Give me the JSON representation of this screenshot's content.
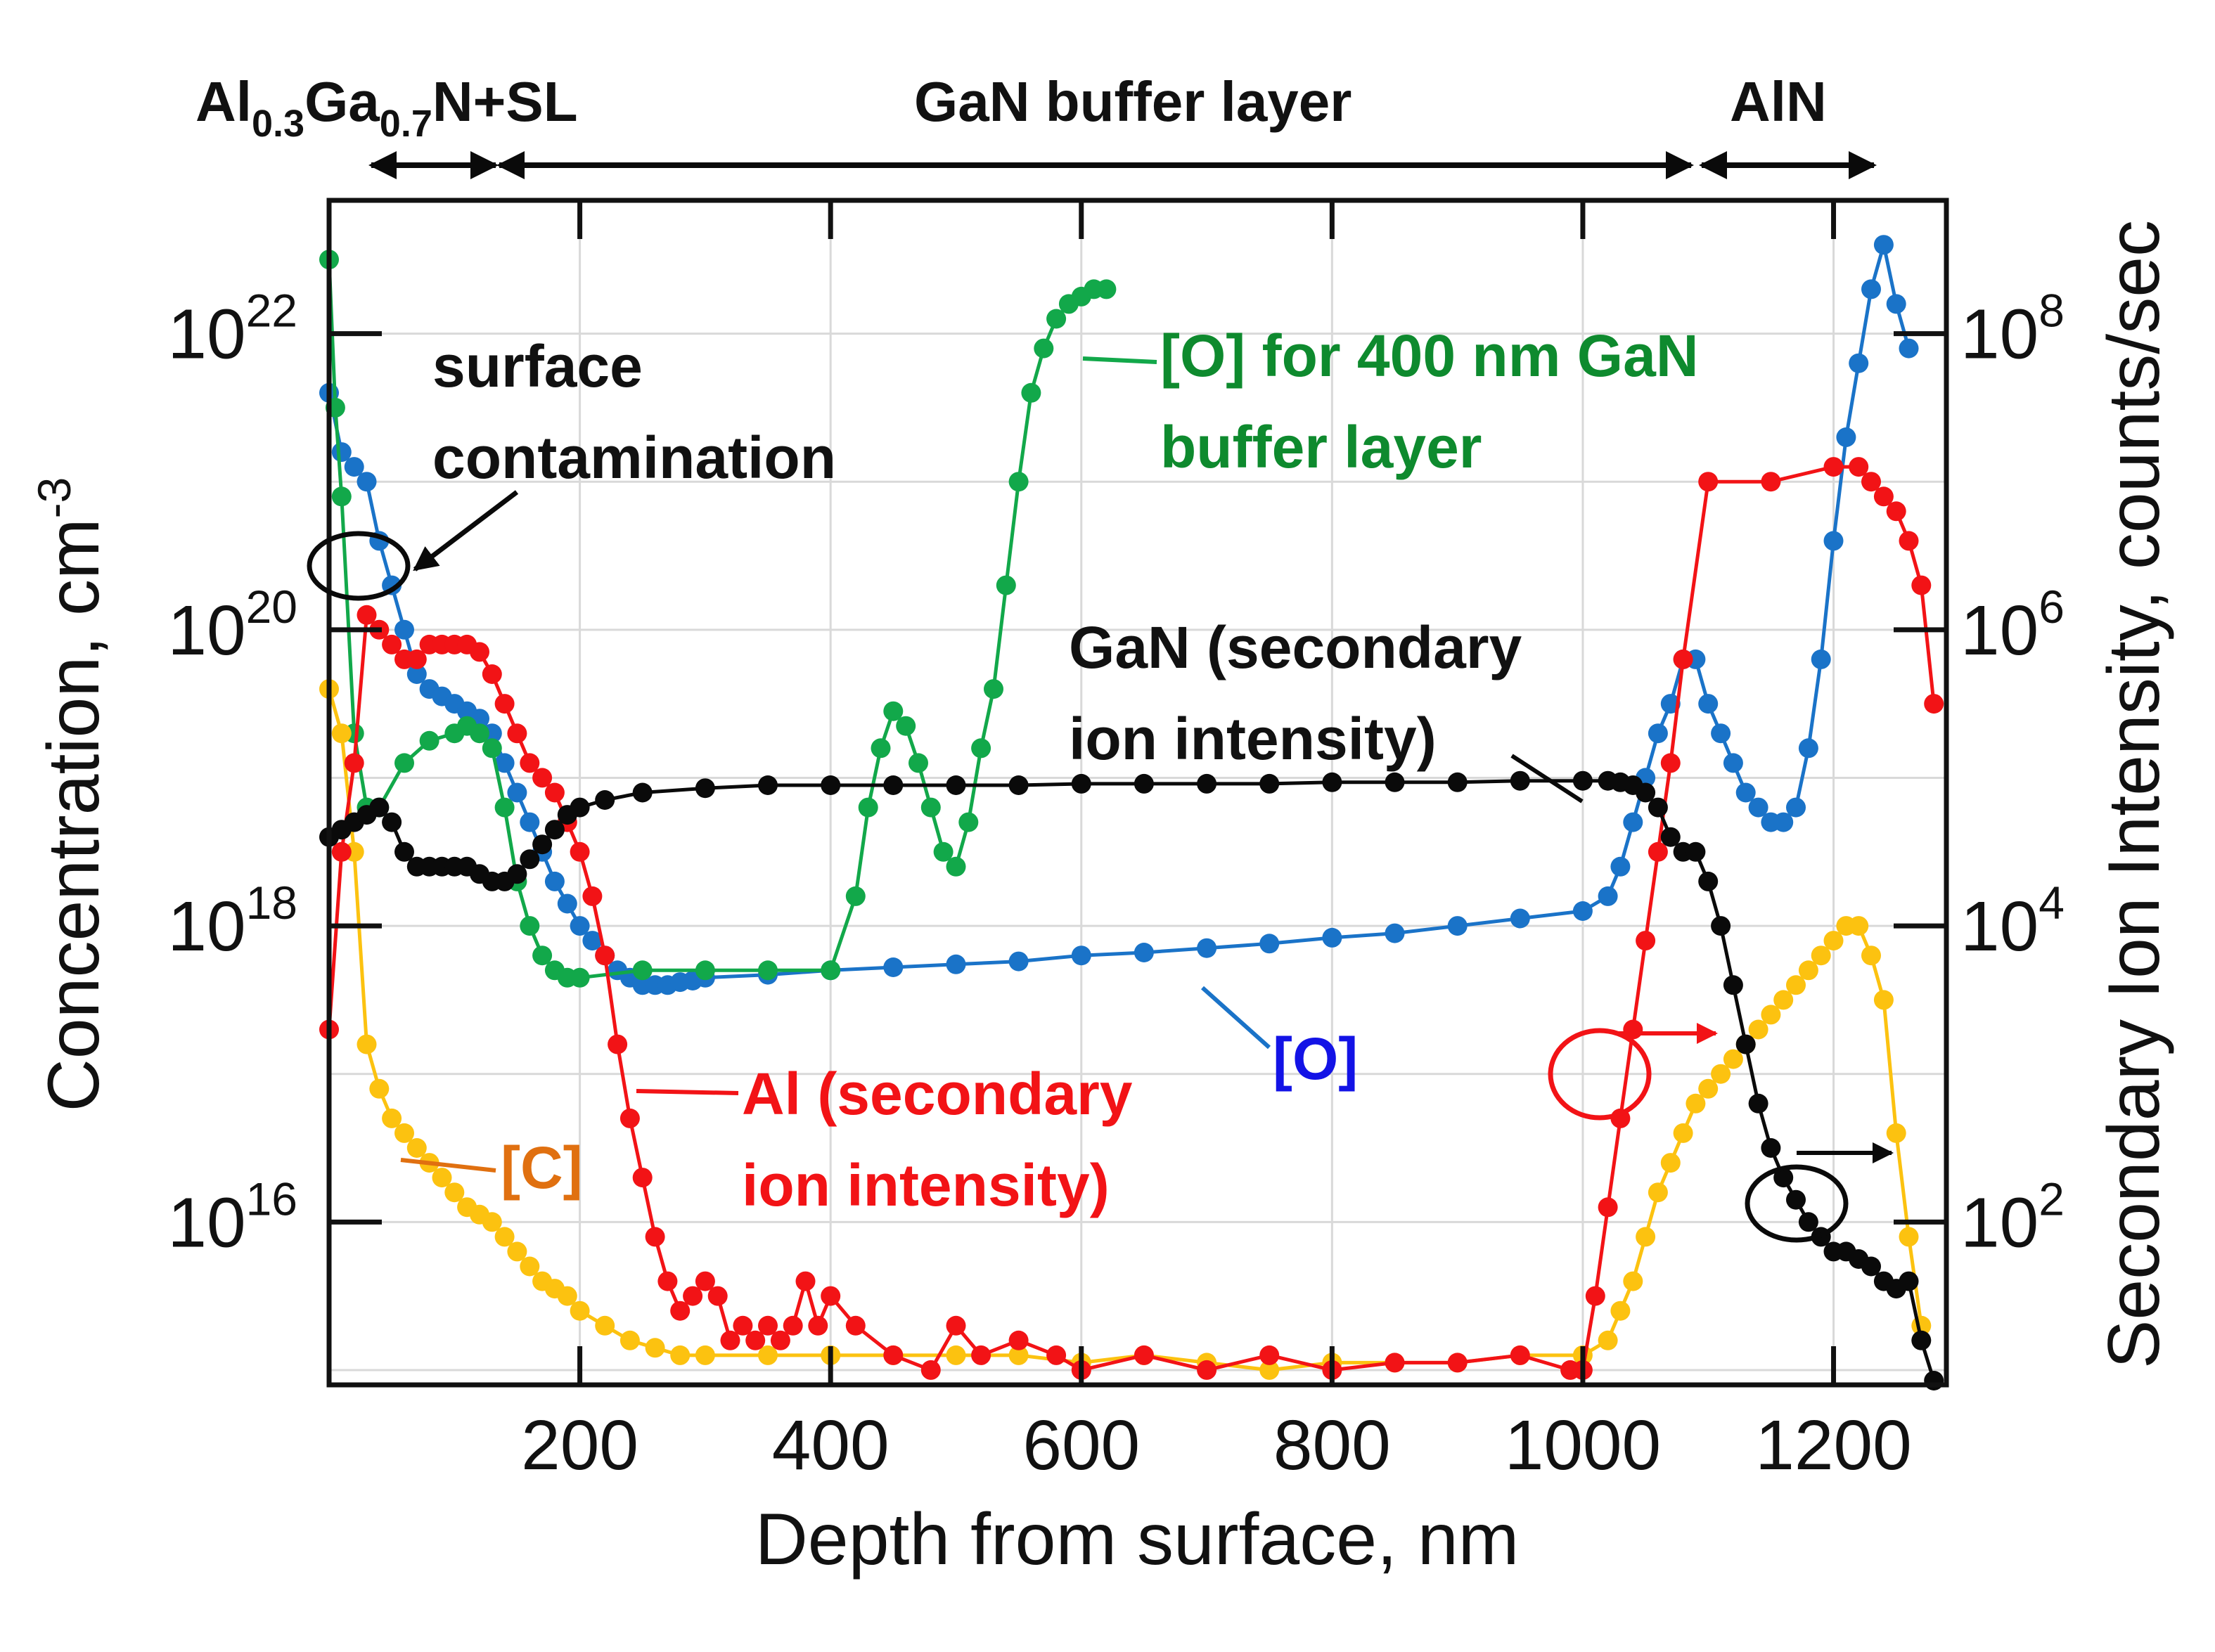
{
  "chart_data": {
    "type": "line",
    "title": "",
    "xlabel": "Depth from surface, nm",
    "ylabel_left": "Concentration, cm",
    "ylabel_left_sup": "-3",
    "ylabel_right": "Secondary Ion Intensity, counts/sec",
    "xlim": [
      0,
      1290
    ],
    "ylim_left_exp": [
      14.9,
      22.9
    ],
    "ylim_right_exp": [
      0.9,
      8.9
    ],
    "grid": true,
    "x_ticks": [
      200,
      400,
      600,
      800,
      1000,
      1200
    ],
    "x_tick_labels": [
      "200",
      "400",
      "600",
      "800",
      "1000",
      "1200"
    ],
    "y_left_ticks": [
      {
        "base": "10",
        "exp": "22",
        "value": 22
      },
      {
        "base": "10",
        "exp": "20",
        "value": 20
      },
      {
        "base": "10",
        "exp": "18",
        "value": 18
      },
      {
        "base": "10",
        "exp": "16",
        "value": 16
      }
    ],
    "y_right_ticks": [
      {
        "base": "10",
        "exp": "8",
        "value": 8
      },
      {
        "base": "10",
        "exp": "6",
        "value": 6
      },
      {
        "base": "10",
        "exp": "4",
        "value": 4
      },
      {
        "base": "10",
        "exp": "2",
        "value": 2
      }
    ],
    "series": [
      {
        "name": "[O]",
        "axis": "left",
        "color": "#1a73c8",
        "x": [
          0,
          10,
          20,
          30,
          40,
          50,
          60,
          70,
          80,
          90,
          100,
          110,
          120,
          130,
          140,
          150,
          160,
          170,
          180,
          190,
          200,
          210,
          220,
          230,
          240,
          250,
          260,
          270,
          280,
          290,
          300,
          350,
          400,
          450,
          500,
          550,
          600,
          650,
          700,
          750,
          800,
          850,
          900,
          950,
          1000,
          1020,
          1030,
          1040,
          1050,
          1060,
          1070,
          1080,
          1090,
          1100,
          1110,
          1120,
          1130,
          1140,
          1150,
          1160,
          1170,
          1180,
          1190,
          1200,
          1210,
          1220,
          1230,
          1240,
          1250,
          1260
        ],
        "y": [
          21.6,
          21.2,
          21.1,
          21.0,
          20.6,
          20.3,
          20.0,
          19.7,
          19.6,
          19.55,
          19.5,
          19.45,
          19.4,
          19.3,
          19.1,
          18.9,
          18.7,
          18.5,
          18.3,
          18.15,
          18.0,
          17.9,
          17.8,
          17.7,
          17.65,
          17.6,
          17.6,
          17.6,
          17.62,
          17.63,
          17.65,
          17.67,
          17.7,
          17.72,
          17.74,
          17.76,
          17.8,
          17.82,
          17.85,
          17.88,
          17.92,
          17.95,
          18.0,
          18.05,
          18.1,
          18.2,
          18.4,
          18.7,
          19.0,
          19.3,
          19.5,
          19.8,
          19.8,
          19.5,
          19.3,
          19.1,
          18.9,
          18.8,
          18.7,
          18.7,
          18.8,
          19.2,
          19.8,
          20.6,
          21.3,
          21.8,
          22.3,
          22.6,
          22.2,
          21.9
        ]
      },
      {
        "name": "[O] for 400 nm GaN buffer layer",
        "axis": "left",
        "color": "#12a84a",
        "x": [
          0,
          5,
          10,
          20,
          30,
          40,
          60,
          80,
          100,
          110,
          120,
          130,
          140,
          150,
          160,
          170,
          180,
          190,
          200,
          250,
          300,
          350,
          400,
          420,
          430,
          440,
          450,
          460,
          470,
          480,
          490,
          500,
          510,
          520,
          530,
          540,
          550,
          560,
          570,
          580,
          590,
          600,
          610,
          620
        ],
        "y": [
          22.5,
          21.5,
          20.9,
          19.3,
          18.8,
          18.8,
          19.1,
          19.25,
          19.3,
          19.35,
          19.3,
          19.2,
          18.8,
          18.3,
          18.0,
          17.8,
          17.7,
          17.65,
          17.65,
          17.7,
          17.7,
          17.7,
          17.7,
          18.2,
          18.8,
          19.2,
          19.45,
          19.35,
          19.1,
          18.8,
          18.5,
          18.4,
          18.7,
          19.2,
          19.6,
          20.3,
          21.0,
          21.6,
          21.9,
          22.1,
          22.2,
          22.25,
          22.3,
          22.3
        ]
      },
      {
        "name": "[C]",
        "axis": "left",
        "color": "#fcc210",
        "x": [
          0,
          10,
          20,
          30,
          40,
          50,
          60,
          70,
          80,
          90,
          100,
          110,
          120,
          130,
          140,
          150,
          160,
          170,
          180,
          190,
          200,
          220,
          240,
          260,
          280,
          300,
          350,
          400,
          450,
          500,
          550,
          600,
          650,
          700,
          750,
          800,
          850,
          900,
          950,
          1000,
          1020,
          1030,
          1040,
          1050,
          1060,
          1070,
          1080,
          1090,
          1100,
          1110,
          1120,
          1130,
          1140,
          1150,
          1160,
          1170,
          1180,
          1190,
          1200,
          1210,
          1220,
          1230,
          1240,
          1250,
          1260,
          1270
        ],
        "y": [
          19.6,
          19.3,
          18.5,
          17.2,
          16.9,
          16.7,
          16.6,
          16.5,
          16.4,
          16.3,
          16.2,
          16.1,
          16.05,
          16.0,
          15.9,
          15.8,
          15.7,
          15.6,
          15.55,
          15.5,
          15.4,
          15.3,
          15.2,
          15.15,
          15.1,
          15.1,
          15.1,
          15.1,
          15.1,
          15.1,
          15.1,
          15.05,
          15.1,
          15.05,
          15.0,
          15.05,
          15.05,
          15.05,
          15.1,
          15.1,
          15.2,
          15.4,
          15.6,
          15.9,
          16.2,
          16.4,
          16.6,
          16.8,
          16.9,
          17.0,
          17.1,
          17.2,
          17.3,
          17.4,
          17.5,
          17.6,
          17.7,
          17.8,
          17.9,
          18.0,
          18.0,
          17.8,
          17.5,
          16.6,
          15.9,
          15.3
        ]
      },
      {
        "name": "Al (secondary ion intensity)",
        "axis": "right",
        "color": "#f21316",
        "x": [
          0,
          10,
          20,
          30,
          40,
          50,
          60,
          70,
          80,
          90,
          100,
          110,
          120,
          130,
          140,
          150,
          160,
          170,
          180,
          190,
          200,
          210,
          220,
          230,
          240,
          250,
          260,
          270,
          280,
          290,
          300,
          310,
          320,
          330,
          340,
          350,
          360,
          370,
          380,
          390,
          400,
          420,
          450,
          480,
          500,
          520,
          550,
          580,
          600,
          650,
          700,
          750,
          800,
          850,
          900,
          950,
          990,
          1000,
          1010,
          1020,
          1030,
          1040,
          1050,
          1060,
          1070,
          1080,
          1100,
          1150,
          1200,
          1220,
          1230,
          1240,
          1250,
          1260,
          1270,
          1280
        ],
        "y": [
          3.3,
          4.5,
          5.1,
          6.1,
          6.0,
          5.9,
          5.8,
          5.8,
          5.9,
          5.9,
          5.9,
          5.9,
          5.85,
          5.7,
          5.5,
          5.3,
          5.1,
          5.0,
          4.9,
          4.7,
          4.5,
          4.2,
          3.8,
          3.2,
          2.7,
          2.3,
          1.9,
          1.6,
          1.4,
          1.5,
          1.6,
          1.5,
          1.2,
          1.3,
          1.2,
          1.3,
          1.2,
          1.3,
          1.6,
          1.3,
          1.5,
          1.3,
          1.1,
          1.0,
          1.3,
          1.1,
          1.2,
          1.1,
          1.0,
          1.1,
          1.0,
          1.1,
          1.0,
          1.05,
          1.05,
          1.1,
          1.0,
          1.0,
          1.5,
          2.1,
          2.7,
          3.3,
          3.9,
          4.5,
          5.1,
          5.8,
          7.0,
          7.0,
          7.1,
          7.1,
          7.0,
          6.9,
          6.8,
          6.6,
          6.3,
          5.5
        ]
      },
      {
        "name": "GaN (secondary ion intensity)",
        "axis": "right",
        "color": "#0a0a0a",
        "x": [
          0,
          10,
          20,
          30,
          40,
          50,
          60,
          70,
          80,
          90,
          100,
          110,
          120,
          130,
          140,
          150,
          160,
          170,
          180,
          190,
          200,
          220,
          250,
          300,
          350,
          400,
          450,
          500,
          550,
          600,
          650,
          700,
          750,
          800,
          850,
          900,
          950,
          1000,
          1020,
          1030,
          1040,
          1050,
          1060,
          1070,
          1080,
          1090,
          1100,
          1110,
          1120,
          1130,
          1140,
          1150,
          1160,
          1170,
          1180,
          1190,
          1200,
          1210,
          1220,
          1230,
          1240,
          1250,
          1260,
          1270,
          1280
        ],
        "y": [
          4.6,
          4.65,
          4.7,
          4.75,
          4.8,
          4.7,
          4.5,
          4.4,
          4.4,
          4.4,
          4.4,
          4.4,
          4.35,
          4.3,
          4.3,
          4.35,
          4.45,
          4.55,
          4.65,
          4.75,
          4.8,
          4.85,
          4.9,
          4.93,
          4.95,
          4.95,
          4.95,
          4.95,
          4.95,
          4.96,
          4.96,
          4.96,
          4.96,
          4.97,
          4.97,
          4.97,
          4.98,
          4.98,
          4.98,
          4.97,
          4.95,
          4.9,
          4.8,
          4.6,
          4.5,
          4.5,
          4.3,
          4.0,
          3.6,
          3.2,
          2.8,
          2.5,
          2.3,
          2.15,
          2.0,
          1.9,
          1.8,
          1.8,
          1.75,
          1.7,
          1.6,
          1.55,
          1.6,
          1.2,
          0.9
        ]
      }
    ],
    "header_labels": {
      "algan_prefix": "Al",
      "algan_sub1": "0.3",
      "algan_mid": "Ga",
      "algan_sub2": "0.7",
      "algan_suffix": "N+SL",
      "gan_buffer": "GaN buffer layer",
      "aln": "AlN"
    },
    "annotations": {
      "surface_line1": "surface",
      "surface_line2": "contamination",
      "o400_line1": "[O] for 400 nm GaN",
      "o400_line2": "buffer layer",
      "gan_line1": "GaN (secondary",
      "gan_line2": "ion intensity)",
      "al_line1": "Al (secondary",
      "al_line2": "ion intensity)",
      "o_label": "[O]",
      "c_label": "[C]"
    },
    "colors": {
      "blue_text": "#1313e6",
      "green_text": "#0e8a2e",
      "red_text": "#f21316",
      "orange_text": "#e07010",
      "black_text": "#111111"
    }
  }
}
